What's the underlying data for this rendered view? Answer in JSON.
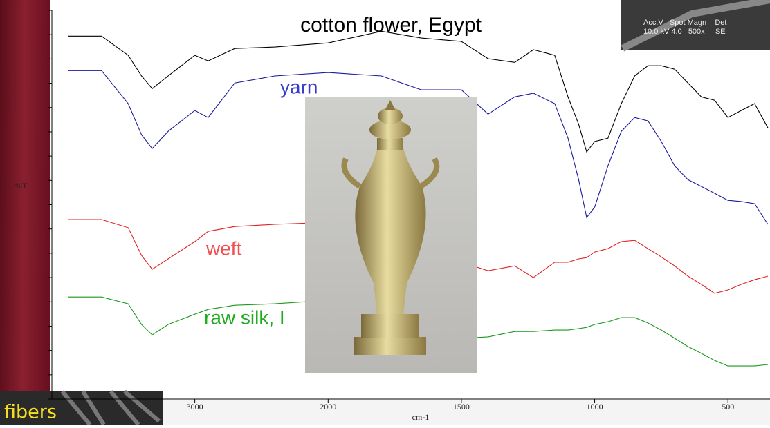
{
  "chart_data": {
    "type": "line",
    "xlabel": "cm-1",
    "ylabel": "%T",
    "x": [
      3950,
      3700,
      3500,
      3400,
      3320,
      3200,
      3000,
      2900,
      2700,
      2400,
      2000,
      1800,
      1650,
      1500,
      1400,
      1300,
      1230,
      1150,
      1100,
      1060,
      1030,
      1000,
      950,
      900,
      850,
      800,
      750,
      700,
      650,
      600,
      550,
      500,
      450,
      400,
      350
    ],
    "series": [
      {
        "name": "cotton flower, Egypt",
        "color": "#000000",
        "label_color": "#000000",
        "values": [
          14.94,
          14.94,
          14.15,
          13.3,
          12.78,
          13.3,
          14.15,
          13.92,
          14.43,
          14.49,
          14.66,
          15.14,
          14.86,
          14.72,
          14.01,
          13.86,
          14.38,
          14.15,
          12.44,
          11.31,
          10.17,
          10.6,
          10.74,
          12.16,
          13.3,
          13.72,
          13.72,
          13.58,
          13.01,
          12.44,
          12.3,
          11.59,
          11.88,
          12.16,
          11.16
        ]
      },
      {
        "name": "yarn",
        "color": "#1a1a9a",
        "label_color": "#3a3acc",
        "values": [
          13.52,
          13.52,
          12.16,
          10.88,
          10.31,
          11.02,
          11.88,
          11.59,
          13.01,
          13.3,
          13.44,
          13.3,
          12.73,
          12.73,
          11.73,
          12.44,
          12.59,
          12.16,
          10.74,
          9.03,
          7.47,
          7.9,
          9.6,
          11.02,
          11.59,
          11.45,
          10.6,
          9.6,
          9.03,
          8.75,
          8.47,
          8.18,
          8.13,
          8.04,
          7.19
        ]
      },
      {
        "name": "weft",
        "color": "#e02020",
        "label_color": "#f05050",
        "values": [
          7.39,
          7.39,
          7.05,
          5.91,
          5.34,
          5.77,
          6.48,
          6.9,
          7.1,
          7.19,
          7.27,
          7.27,
          7.05,
          5.63,
          5.28,
          5.48,
          5.0,
          5.63,
          5.63,
          5.77,
          5.82,
          6.05,
          6.19,
          6.48,
          6.53,
          6.19,
          5.85,
          5.48,
          5.06,
          4.72,
          4.35,
          4.49,
          4.72,
          4.91,
          5.06
        ]
      },
      {
        "name": "raw silk, I",
        "color": "#1a9a1a",
        "label_color": "#22aa22",
        "values": [
          4.2,
          4.2,
          3.92,
          3.07,
          2.64,
          3.07,
          3.49,
          3.69,
          3.86,
          3.92,
          4.06,
          4.06,
          3.92,
          2.5,
          2.56,
          2.78,
          2.78,
          2.84,
          2.84,
          2.9,
          2.95,
          3.07,
          3.18,
          3.35,
          3.35,
          3.13,
          2.84,
          2.5,
          2.16,
          1.88,
          1.59,
          1.36,
          1.36,
          1.36,
          1.42
        ]
      }
    ],
    "xlim": [
      4000,
      350
    ],
    "xticks": [
      3000,
      2000,
      1500,
      1000,
      500
    ],
    "x_scale_break": 2000,
    "x_scale_factor_below_break": 2,
    "ylim": [
      0,
      16
    ],
    "yticks": [
      0,
      1,
      2,
      3,
      4,
      5,
      6,
      7,
      8,
      9,
      10,
      11,
      12,
      13,
      14,
      15,
      16
    ]
  },
  "sem_inset": {
    "header": "Acc.V   Spot Magn    Det",
    "values": "10.0 kV 4.0   500x     SE"
  },
  "slide_label": "fibers"
}
